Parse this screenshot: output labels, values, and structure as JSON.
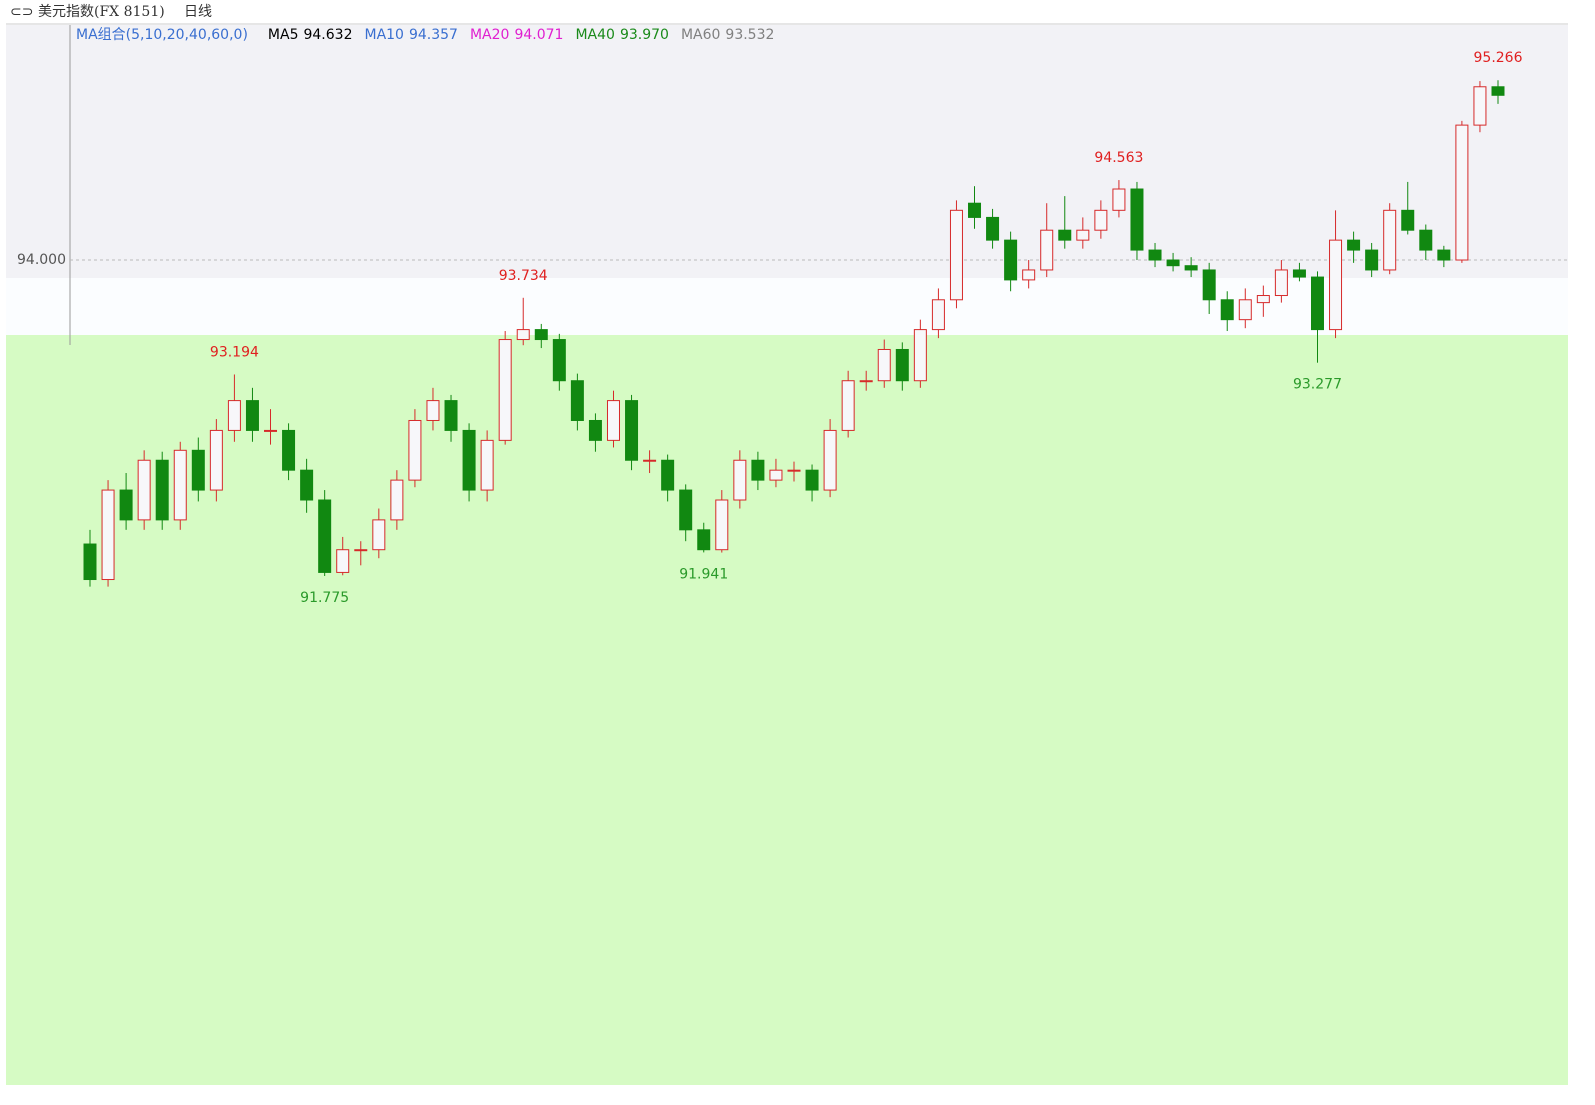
{
  "chart_data": {
    "type": "candlestick",
    "title": "美元指数(FX 8151)",
    "period": "日线",
    "ma_group": "MA组合(5,10,20,40,60,0)",
    "ma_legend": [
      {
        "name": "MA5",
        "value": 94.632,
        "color": "#000000"
      },
      {
        "name": "MA10",
        "value": 94.357,
        "color": "#3a6fd0"
      },
      {
        "name": "MA20",
        "value": 94.071,
        "color": "#e020d0"
      },
      {
        "name": "MA40",
        "value": 93.97,
        "value_label": "93.970",
        "color": "#1a8a1a"
      },
      {
        "name": "MA60",
        "value": 93.532,
        "color": "#808080"
      }
    ],
    "up_color": "#d62a2a",
    "down_color": "#118811",
    "ylim": [
      91.465,
      95.655
    ],
    "yticks": [
      {
        "value": 94,
        "label": "94.000"
      }
    ],
    "grid": true,
    "annotations": [
      95.266,
      94.563,
      93.734,
      93.194,
      93.277,
      91.941,
      91.775
    ],
    "ohlc": [
      [
        92.0,
        92.1,
        91.7,
        91.75
      ],
      [
        91.75,
        92.45,
        91.7,
        92.38
      ],
      [
        92.38,
        92.5,
        92.1,
        92.17
      ],
      [
        92.17,
        92.66,
        92.1,
        92.59
      ],
      [
        92.59,
        92.65,
        92.1,
        92.17
      ],
      [
        92.17,
        92.72,
        92.1,
        92.66
      ],
      [
        92.66,
        92.75,
        92.3,
        92.38
      ],
      [
        92.38,
        92.88,
        92.3,
        92.8
      ],
      [
        92.8,
        93.194,
        92.72,
        93.01
      ],
      [
        93.01,
        93.1,
        92.72,
        92.8
      ],
      [
        92.8,
        92.95,
        92.7,
        92.8
      ],
      [
        92.8,
        92.85,
        92.45,
        92.52
      ],
      [
        92.52,
        92.6,
        92.22,
        92.31
      ],
      [
        92.31,
        92.38,
        91.775,
        91.8
      ],
      [
        91.8,
        92.05,
        91.78,
        91.96
      ],
      [
        91.96,
        92.02,
        91.85,
        91.96
      ],
      [
        91.96,
        92.25,
        91.9,
        92.17
      ],
      [
        92.17,
        92.52,
        92.1,
        92.45
      ],
      [
        92.45,
        92.95,
        92.4,
        92.87
      ],
      [
        92.87,
        93.1,
        92.8,
        93.01
      ],
      [
        93.01,
        93.05,
        92.72,
        92.8
      ],
      [
        92.8,
        92.85,
        92.3,
        92.38
      ],
      [
        92.38,
        92.8,
        92.3,
        92.73
      ],
      [
        92.73,
        93.5,
        92.7,
        93.44
      ],
      [
        93.44,
        93.734,
        93.4,
        93.51
      ],
      [
        93.51,
        93.55,
        93.38,
        93.44
      ],
      [
        93.44,
        93.48,
        93.08,
        93.15
      ],
      [
        93.15,
        93.2,
        92.8,
        92.87
      ],
      [
        92.87,
        92.92,
        92.65,
        92.73
      ],
      [
        92.73,
        93.08,
        92.68,
        93.01
      ],
      [
        93.01,
        93.05,
        92.52,
        92.59
      ],
      [
        92.59,
        92.66,
        92.5,
        92.59
      ],
      [
        92.59,
        92.63,
        92.3,
        92.38
      ],
      [
        92.38,
        92.42,
        92.02,
        92.1
      ],
      [
        92.1,
        92.15,
        91.941,
        91.96
      ],
      [
        91.96,
        92.38,
        91.94,
        92.31
      ],
      [
        92.31,
        92.66,
        92.25,
        92.59
      ],
      [
        92.59,
        92.65,
        92.38,
        92.45
      ],
      [
        92.45,
        92.6,
        92.4,
        92.52
      ],
      [
        92.52,
        92.58,
        92.44,
        92.52
      ],
      [
        92.52,
        92.56,
        92.3,
        92.38
      ],
      [
        92.38,
        92.88,
        92.33,
        92.8
      ],
      [
        92.8,
        93.22,
        92.75,
        93.15
      ],
      [
        93.15,
        93.22,
        93.08,
        93.15
      ],
      [
        93.15,
        93.44,
        93.1,
        93.37
      ],
      [
        93.37,
        93.42,
        93.08,
        93.15
      ],
      [
        93.15,
        93.58,
        93.1,
        93.51
      ],
      [
        93.51,
        93.8,
        93.45,
        93.72
      ],
      [
        93.72,
        94.42,
        93.66,
        94.35
      ],
      [
        94.4,
        94.52,
        94.22,
        94.3
      ],
      [
        94.3,
        94.36,
        94.08,
        94.14
      ],
      [
        94.14,
        94.2,
        93.78,
        93.86
      ],
      [
        93.86,
        94.0,
        93.8,
        93.93
      ],
      [
        93.93,
        94.4,
        93.88,
        94.21
      ],
      [
        94.21,
        94.45,
        94.08,
        94.14
      ],
      [
        94.14,
        94.3,
        94.08,
        94.21
      ],
      [
        94.21,
        94.42,
        94.15,
        94.35
      ],
      [
        94.35,
        94.563,
        94.3,
        94.5
      ],
      [
        94.5,
        94.55,
        94.0,
        94.07
      ],
      [
        94.07,
        94.12,
        93.95,
        94.0
      ],
      [
        94.0,
        94.05,
        93.92,
        93.96
      ],
      [
        93.96,
        94.02,
        93.88,
        93.93
      ],
      [
        93.93,
        93.98,
        93.62,
        93.72
      ],
      [
        93.72,
        93.78,
        93.5,
        93.58
      ],
      [
        93.58,
        93.8,
        93.52,
        93.72
      ],
      [
        93.7,
        93.82,
        93.6,
        93.75
      ],
      [
        93.75,
        94.0,
        93.7,
        93.93
      ],
      [
        93.93,
        93.98,
        93.85,
        93.88
      ],
      [
        93.88,
        93.92,
        93.277,
        93.51
      ],
      [
        93.51,
        94.35,
        93.45,
        94.14
      ],
      [
        94.14,
        94.2,
        93.98,
        94.07
      ],
      [
        94.07,
        94.12,
        93.88,
        93.93
      ],
      [
        93.93,
        94.4,
        93.9,
        94.35
      ],
      [
        94.35,
        94.55,
        94.18,
        94.21
      ],
      [
        94.21,
        94.25,
        94.0,
        94.07
      ],
      [
        94.07,
        94.1,
        93.95,
        94.0
      ],
      [
        94.0,
        94.98,
        93.98,
        94.95
      ],
      [
        94.95,
        95.26,
        94.9,
        95.22
      ],
      [
        95.22,
        95.266,
        95.1,
        95.16
      ]
    ]
  }
}
